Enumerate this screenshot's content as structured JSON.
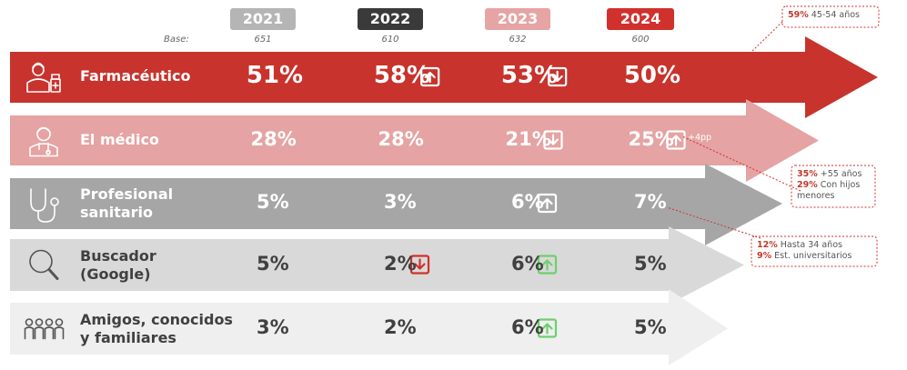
{
  "years": [
    "2021",
    "2022",
    "2023",
    "2024"
  ],
  "year_colors": [
    "#b5b5b5",
    "#3a3a3a",
    "#e6a4a4",
    "#d0312d"
  ],
  "base": {
    "label": "Base:",
    "values": [
      "651",
      "610",
      "632",
      "600"
    ]
  },
  "chart_data": {
    "type": "table",
    "columns": [
      "2021",
      "2022",
      "2023",
      "2024"
    ],
    "rows": [
      {
        "name": "Farmacéutico",
        "icon": "pharmacist-icon",
        "color": "#c8332d",
        "text_color": "#ffffff",
        "values": [
          51,
          58,
          53,
          50
        ],
        "display": [
          "51%",
          "58%",
          "53%",
          "50%"
        ],
        "trend": [
          "",
          "up",
          "down",
          ""
        ],
        "trend_colors": [
          "",
          "#ffffff",
          "#ffffff",
          ""
        ]
      },
      {
        "name": "El médico",
        "icon": "doctor-icon",
        "color": "#e5a3a3",
        "text_color": "#ffffff",
        "values": [
          28,
          28,
          21,
          25
        ],
        "display": [
          "28%",
          "28%",
          "21%",
          "25%"
        ],
        "trend": [
          "",
          "",
          "down",
          "up"
        ],
        "trend_colors": [
          "",
          "",
          "#ffffff",
          "#ffffff"
        ],
        "note_2024": "+4pp"
      },
      {
        "name": "Profesional sanitario",
        "icon": "stethoscope-icon",
        "color": "#a6a6a6",
        "text_color": "#ffffff",
        "values": [
          5,
          3,
          6,
          7
        ],
        "display": [
          "5%",
          "3%",
          "6%",
          "7%"
        ],
        "trend": [
          "",
          "",
          "up",
          ""
        ],
        "trend_colors": [
          "",
          "",
          "#ffffff",
          ""
        ]
      },
      {
        "name": "Buscador (Google)",
        "icon": "search-icon",
        "color": "#d9d9d9",
        "text_color": "#404040",
        "values": [
          5,
          2,
          6,
          5
        ],
        "display": [
          "5%",
          "2%",
          "6%",
          "5%"
        ],
        "trend": [
          "",
          "down",
          "up",
          ""
        ],
        "trend_colors": [
          "",
          "#d0312d",
          "#6fcf6f",
          ""
        ]
      },
      {
        "name": "Amigos, conocidos y familiares",
        "icon": "people-icon",
        "color": "#efefef",
        "text_color": "#404040",
        "values": [
          3,
          2,
          6,
          5
        ],
        "display": [
          "3%",
          "2%",
          "6%",
          "5%"
        ],
        "trend": [
          "",
          "",
          "up",
          ""
        ],
        "trend_colors": [
          "",
          "",
          "#6fcf6f",
          ""
        ]
      }
    ]
  },
  "annotations": [
    {
      "lines": [
        {
          "pct": "59%",
          "text": "45-54 años"
        }
      ]
    },
    {
      "lines": [
        {
          "pct": "35%",
          "text": "+55 años"
        },
        {
          "pct": "29%",
          "text": "Con hijos menores"
        }
      ]
    },
    {
      "lines": [
        {
          "pct": "12%",
          "text": "Hasta 34 años"
        },
        {
          "pct": "9%",
          "text": "Est. universitarios"
        }
      ]
    }
  ]
}
